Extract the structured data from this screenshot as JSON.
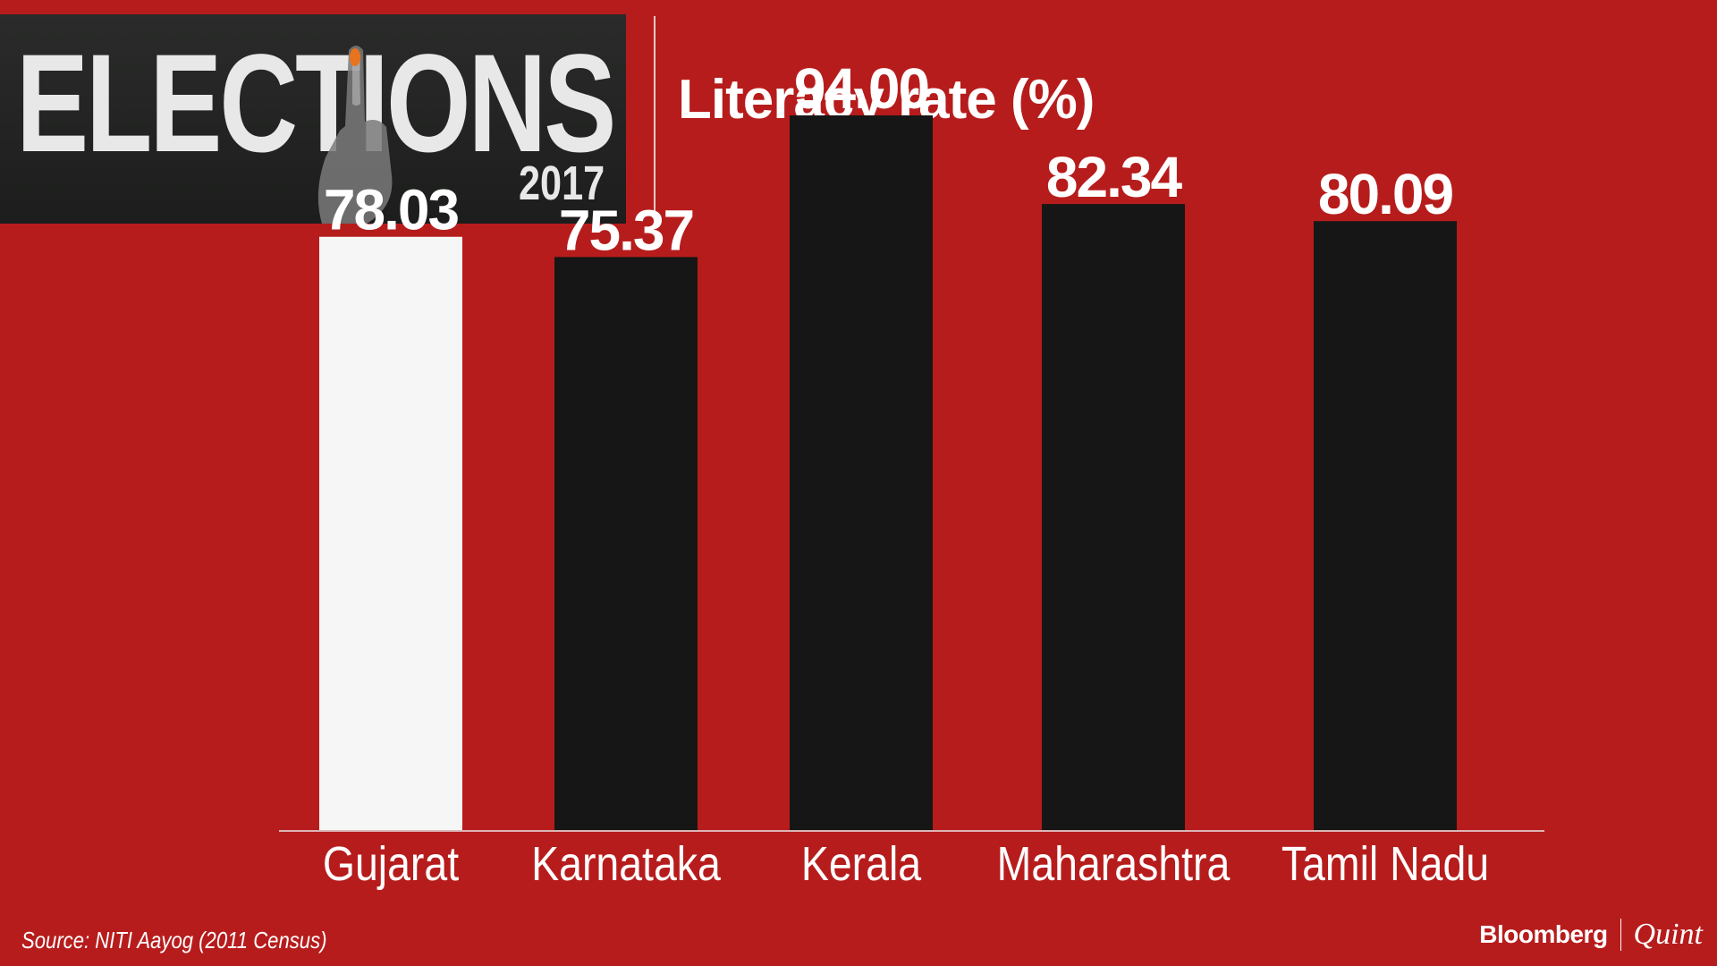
{
  "logo": {
    "word": "ELECTIONS",
    "year": "2017"
  },
  "chart_data": {
    "type": "bar",
    "title": "Literacy rate (%)",
    "categories": [
      "Gujarat",
      "Karnataka",
      "Kerala",
      "Maharashtra",
      "Tamil Nadu"
    ],
    "values": [
      78.03,
      75.37,
      94.0,
      82.34,
      80.09
    ],
    "value_labels": [
      "78.03",
      "75.37",
      "94.00",
      "82.34",
      "80.09"
    ],
    "highlight_index": 0,
    "colors": {
      "highlight": "#f6f6f6",
      "bar": "#161616",
      "background": "#b71c1c",
      "text": "#ffffff"
    },
    "ylim": [
      0,
      100
    ],
    "grid": false,
    "legend": "none"
  },
  "footer": {
    "source": "Source: NITI Aayog (2011 Census)",
    "brand_primary": "Bloomberg",
    "brand_secondary": "Quint"
  }
}
